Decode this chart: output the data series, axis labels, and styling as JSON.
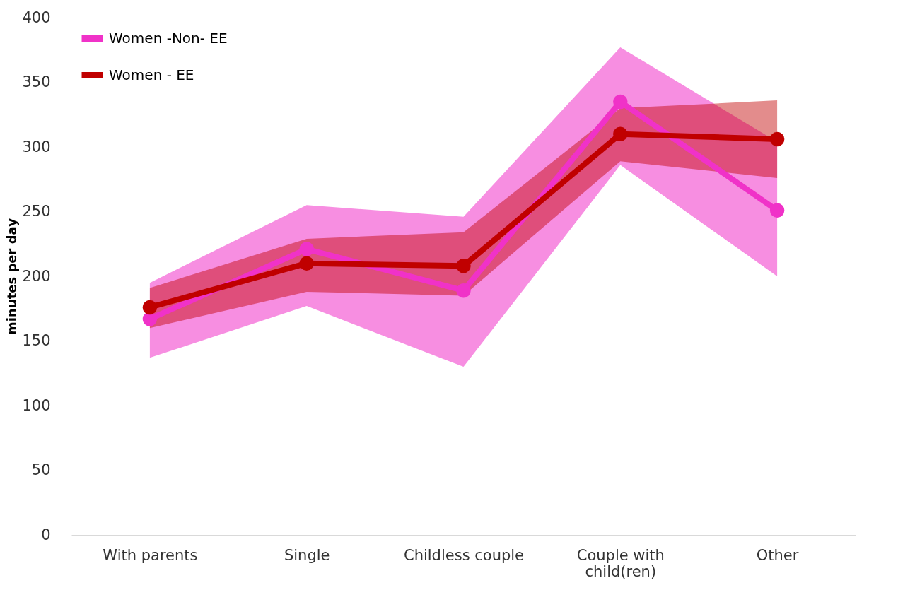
{
  "chart_data": {
    "type": "line",
    "ylabel": "minutes per day",
    "categories": [
      "With parents",
      "Single",
      "Childless couple",
      "Couple with child(ren)",
      "Other"
    ],
    "series": [
      {
        "name": "Women -Non- EE",
        "color": "#f032c8",
        "values": [
          167,
          221,
          189,
          335,
          251
        ],
        "lower": [
          137,
          177,
          130,
          286,
          200
        ],
        "upper": [
          195,
          255,
          246,
          377,
          304
        ]
      },
      {
        "name": "Women - EE",
        "color": "#c00000",
        "values": [
          176,
          210,
          208,
          310,
          306
        ],
        "lower": [
          160,
          188,
          185,
          289,
          276
        ],
        "upper": [
          191,
          229,
          234,
          330,
          336
        ]
      }
    ],
    "ylim": [
      0,
      400
    ],
    "yticks": [
      0,
      50,
      100,
      150,
      200,
      250,
      300,
      350,
      400
    ],
    "marker": "circle",
    "line_style": "solid",
    "legend": "top left",
    "grid": false
  }
}
